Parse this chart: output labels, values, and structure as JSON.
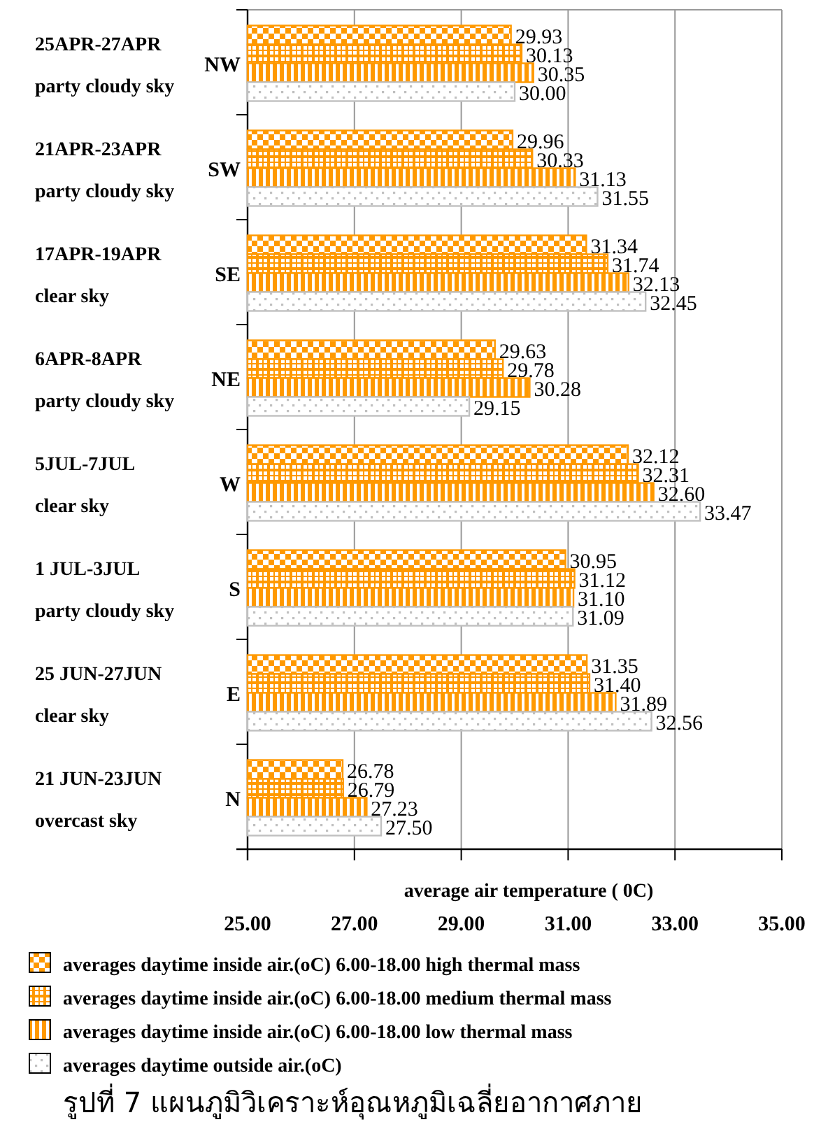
{
  "chart_data": {
    "type": "bar",
    "orientation": "horizontal",
    "xlabel": "average air temperature ( 0C)",
    "categories": [
      "25APR-27APR\nparty cloudy sky\nNW",
      "21APR-23APR\nparty cloudy sky\nSW",
      "17APR-19APR\nclear sky\nSE",
      "6APR-8APR\nparty cloudy sky\nNE",
      "5JUL-7JUL\nclear sky\nW",
      "1 JUL-3JUL\nparty cloudy sky\nS",
      "25 JUN-27JUN\nclear sky\nE",
      "21 JUN-23JUN\novercast sky\nN"
    ],
    "series": [
      {
        "name": "averages daytime inside air.(oC)  6.00-18.00  high thermal mass",
        "color": "#ff9900",
        "values": [
          29.93,
          29.96,
          31.34,
          29.63,
          32.12,
          30.95,
          31.35,
          26.78
        ],
        "value_labels": [
          "29.93",
          "29.96",
          "31.34",
          "29.63",
          "32.12",
          "30.95",
          "31.35",
          "26.78"
        ]
      },
      {
        "name": "averages daytime inside air.(oC)  6.00-18.00  medium thermal mass",
        "color": "#ff9900",
        "values": [
          30.13,
          30.33,
          31.74,
          29.78,
          32.31,
          31.12,
          31.4,
          26.79
        ],
        "value_labels": [
          "30.13",
          "30.33",
          "31.74",
          "29.78",
          "32.31",
          "31.12",
          "31.40",
          "26.79"
        ]
      },
      {
        "name": "averages daytime inside air.(oC) 6.00-18.00 low thermal mass",
        "color": "#ff9900",
        "values": [
          30.35,
          31.13,
          32.13,
          30.28,
          32.6,
          31.1,
          31.89,
          27.23
        ],
        "value_labels": [
          "30.35",
          "31.13",
          "32.13",
          "30.28",
          "32.60",
          "31.10",
          "31.89",
          "27.23"
        ]
      },
      {
        "name": "averages daytime outside air.(oC)",
        "color": "#c0c0c0",
        "values": [
          30.0,
          31.55,
          32.45,
          29.15,
          33.47,
          31.09,
          32.56,
          27.5
        ],
        "value_labels": [
          "30.00",
          "31.55",
          "32.45",
          "29.15",
          "33.47",
          "31.09",
          "32.56",
          "27.50"
        ]
      }
    ],
    "xlim": [
      25,
      35
    ],
    "xticks": [
      {
        "value": 25,
        "label": "25.00"
      },
      {
        "value": 27,
        "label": "27.00"
      },
      {
        "value": 29,
        "label": "29.00"
      },
      {
        "value": 31,
        "label": "31.00"
      },
      {
        "value": 33,
        "label": "33.00"
      },
      {
        "value": 35,
        "label": "35.00"
      }
    ],
    "grid": "x",
    "legend": "bottom",
    "annotations": [
      "รูปที่ 7  แผนภูมิวิเคราะห์อุณหภูมิเฉลี่ยอากาศภาย"
    ]
  }
}
